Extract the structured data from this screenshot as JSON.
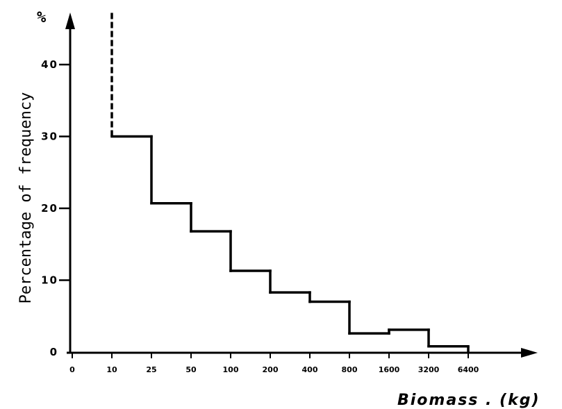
{
  "chart_data": {
    "type": "histogram",
    "x_tick_labels": [
      "0",
      "10",
      "25",
      "50",
      "100",
      "200",
      "400",
      "800",
      "1600",
      "3200",
      "6400"
    ],
    "y_tick_labels": [
      "0",
      "10",
      "20",
      "30",
      "40"
    ],
    "y_unit": "%",
    "ylabel": "Percentage of frequency",
    "xlabel": "Biomass . (kg)",
    "ylim": [
      0,
      48
    ],
    "bins": [
      {
        "from": "10",
        "to": "25",
        "value": 30
      },
      {
        "from": "25",
        "to": "50",
        "value": 20.7
      },
      {
        "from": "50",
        "to": "100",
        "value": 16.8
      },
      {
        "from": "100",
        "to": "200",
        "value": 11.3
      },
      {
        "from": "200",
        "to": "400",
        "value": 8.3
      },
      {
        "from": "400",
        "to": "800",
        "value": 7.0
      },
      {
        "from": "800",
        "to": "1600",
        "value": 2.6
      },
      {
        "from": "1600",
        "to": "3200",
        "value": 3.1
      },
      {
        "from": "3200",
        "to": "6400",
        "value": 0.8
      }
    ],
    "first_bin_dashed_extension": true,
    "grid": false,
    "legend": "none"
  }
}
